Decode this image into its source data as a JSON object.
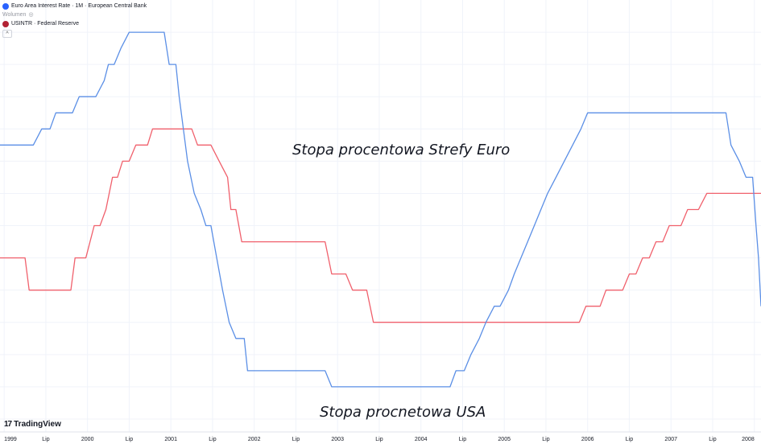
{
  "legend": {
    "series1_label": "Euro Area Interest Rate · 1M · European Central Bank",
    "volume_label": "Wolumen",
    "series2_label": "USINTR · Federal Reserve",
    "collapse_glyph": "^"
  },
  "brand": {
    "name": "TradingView",
    "logo_glyph": "17"
  },
  "annotations": {
    "euro": "Stopa procentowa Strefy Euro",
    "usa": "Stopa procnetowa USA"
  },
  "colors": {
    "euro": "#f0606c",
    "usa": "#5b8fe6",
    "grid": "#f0f3fa",
    "axis_text": "#131722"
  },
  "chart_data": {
    "type": "line",
    "x_ticks": [
      {
        "t": 1999.0,
        "label": "1999"
      },
      {
        "t": 1999.5,
        "label": "Lip"
      },
      {
        "t": 2000.0,
        "label": "2000"
      },
      {
        "t": 2000.5,
        "label": "Lip"
      },
      {
        "t": 2001.0,
        "label": "2001"
      },
      {
        "t": 2001.5,
        "label": "Lip"
      },
      {
        "t": 2002.0,
        "label": "2002"
      },
      {
        "t": 2002.5,
        "label": "Lip"
      },
      {
        "t": 2003.0,
        "label": "2003"
      },
      {
        "t": 2003.5,
        "label": "Lip"
      },
      {
        "t": 2004.0,
        "label": "2004"
      },
      {
        "t": 2004.5,
        "label": "Lip"
      },
      {
        "t": 2005.0,
        "label": "2005"
      },
      {
        "t": 2005.5,
        "label": "Lip"
      },
      {
        "t": 2006.0,
        "label": "2006"
      },
      {
        "t": 2006.5,
        "label": "Lip"
      },
      {
        "t": 2007.0,
        "label": "2007"
      },
      {
        "t": 2007.5,
        "label": "Lip"
      },
      {
        "t": 2008.0,
        "label": "2008"
      }
    ],
    "xlim": [
      1998.95,
      2008.08
    ],
    "ylim": [
      0.3,
      7.0
    ],
    "grid": true,
    "series": [
      {
        "key": "euro",
        "points": [
          [
            1998.95,
            3.0
          ],
          [
            1999.25,
            3.0
          ],
          [
            1999.3,
            2.5
          ],
          [
            1999.8,
            2.5
          ],
          [
            1999.85,
            3.0
          ],
          [
            1999.98,
            3.0
          ],
          [
            2000.08,
            3.5
          ],
          [
            2000.15,
            3.5
          ],
          [
            2000.22,
            3.75
          ],
          [
            2000.3,
            4.25
          ],
          [
            2000.36,
            4.25
          ],
          [
            2000.42,
            4.5
          ],
          [
            2000.5,
            4.5
          ],
          [
            2000.58,
            4.75
          ],
          [
            2000.72,
            4.75
          ],
          [
            2000.78,
            5.0
          ],
          [
            2001.25,
            5.0
          ],
          [
            2001.32,
            4.75
          ],
          [
            2001.48,
            4.75
          ],
          [
            2001.58,
            4.5
          ],
          [
            2001.68,
            4.25
          ],
          [
            2001.72,
            3.75
          ],
          [
            2001.78,
            3.75
          ],
          [
            2001.85,
            3.25
          ],
          [
            2002.85,
            3.25
          ],
          [
            2002.93,
            2.75
          ],
          [
            2003.1,
            2.75
          ],
          [
            2003.18,
            2.5
          ],
          [
            2003.35,
            2.5
          ],
          [
            2003.43,
            2.0
          ],
          [
            2005.9,
            2.0
          ],
          [
            2005.98,
            2.25
          ],
          [
            2006.15,
            2.25
          ],
          [
            2006.22,
            2.5
          ],
          [
            2006.42,
            2.5
          ],
          [
            2006.5,
            2.75
          ],
          [
            2006.58,
            2.75
          ],
          [
            2006.66,
            3.0
          ],
          [
            2006.74,
            3.0
          ],
          [
            2006.82,
            3.25
          ],
          [
            2006.9,
            3.25
          ],
          [
            2006.98,
            3.5
          ],
          [
            2007.12,
            3.5
          ],
          [
            2007.2,
            3.75
          ],
          [
            2007.33,
            3.75
          ],
          [
            2007.43,
            4.0
          ],
          [
            2008.08,
            4.0
          ]
        ]
      },
      {
        "key": "usa",
        "points": [
          [
            1998.95,
            4.75
          ],
          [
            1999.35,
            4.75
          ],
          [
            1999.45,
            5.0
          ],
          [
            1999.55,
            5.0
          ],
          [
            1999.62,
            5.25
          ],
          [
            1999.82,
            5.25
          ],
          [
            1999.9,
            5.5
          ],
          [
            2000.1,
            5.5
          ],
          [
            2000.2,
            5.75
          ],
          [
            2000.25,
            6.0
          ],
          [
            2000.32,
            6.0
          ],
          [
            2000.4,
            6.25
          ],
          [
            2000.5,
            6.5
          ],
          [
            2000.92,
            6.5
          ],
          [
            2000.98,
            6.0
          ],
          [
            2001.06,
            6.0
          ],
          [
            2001.1,
            5.5
          ],
          [
            2001.15,
            5.0
          ],
          [
            2001.2,
            4.5
          ],
          [
            2001.28,
            4.0
          ],
          [
            2001.36,
            3.75
          ],
          [
            2001.42,
            3.5
          ],
          [
            2001.48,
            3.5
          ],
          [
            2001.55,
            3.0
          ],
          [
            2001.62,
            2.5
          ],
          [
            2001.7,
            2.0
          ],
          [
            2001.78,
            1.75
          ],
          [
            2001.88,
            1.75
          ],
          [
            2001.92,
            1.25
          ],
          [
            2002.85,
            1.25
          ],
          [
            2002.93,
            1.0
          ],
          [
            2003.38,
            1.0
          ],
          [
            2003.43,
            1.0
          ],
          [
            2003.47,
            1.0
          ],
          [
            2003.5,
            1.0
          ],
          [
            2004.35,
            1.0
          ],
          [
            2004.42,
            1.25
          ],
          [
            2004.52,
            1.25
          ],
          [
            2004.6,
            1.5
          ],
          [
            2004.7,
            1.75
          ],
          [
            2004.78,
            2.0
          ],
          [
            2004.88,
            2.25
          ],
          [
            2004.95,
            2.25
          ],
          [
            2005.05,
            2.5
          ],
          [
            2005.12,
            2.75
          ],
          [
            2005.2,
            3.0
          ],
          [
            2005.28,
            3.25
          ],
          [
            2005.36,
            3.5
          ],
          [
            2005.44,
            3.75
          ],
          [
            2005.52,
            4.0
          ],
          [
            2005.62,
            4.25
          ],
          [
            2005.72,
            4.5
          ],
          [
            2005.82,
            4.75
          ],
          [
            2005.92,
            5.0
          ],
          [
            2006.0,
            5.25
          ],
          [
            2006.12,
            5.25
          ],
          [
            2006.2,
            5.25
          ],
          [
            2007.6,
            5.25
          ],
          [
            2007.66,
            5.25
          ],
          [
            2007.72,
            4.75
          ],
          [
            2007.82,
            4.5
          ],
          [
            2007.9,
            4.25
          ],
          [
            2007.98,
            4.25
          ],
          [
            2008.02,
            3.5
          ],
          [
            2008.05,
            3.0
          ],
          [
            2008.08,
            2.25
          ]
        ]
      }
    ]
  }
}
